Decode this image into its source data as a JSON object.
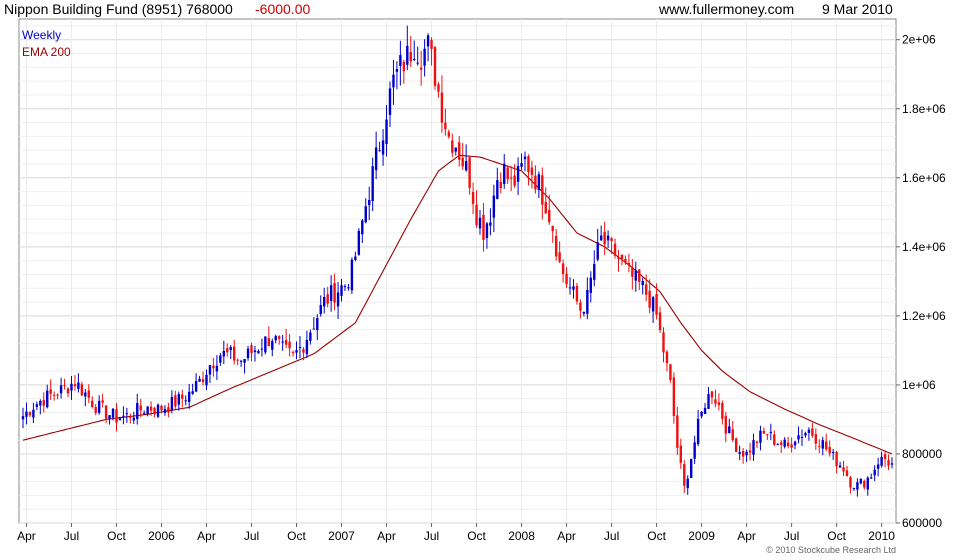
{
  "header": {
    "title": "Nippon Building Fund (8951) 768000",
    "change": "-6000.00",
    "website": "www.fullermoney.com",
    "date": "9 Mar 2010"
  },
  "copyright": "© 2010 Stockcube Research Ltd",
  "colors": {
    "up": "#0000cc",
    "down": "#ee1111",
    "ema": "#990000",
    "grid": "#d8d8d8"
  },
  "chart_data": {
    "type": "candlestick-line",
    "legend": {
      "weekly": "Weekly",
      "ema": "EMA 200",
      "position": "top-left"
    },
    "y_ticks": [
      600000,
      800000,
      1000000,
      1200000,
      1400000,
      1600000,
      1800000,
      2000000
    ],
    "y_tick_labels": [
      "600000",
      "800000",
      "1e+06",
      "1.2e+06",
      "1.4e+06",
      "1.6e+06",
      "1.8e+06",
      "2e+06"
    ],
    "ylim": [
      600000,
      2060000
    ],
    "x_labels": [
      "Apr",
      "Jul",
      "Oct",
      "2006",
      "Apr",
      "Jul",
      "Oct",
      "2007",
      "Apr",
      "Jul",
      "Oct",
      "2008",
      "Apr",
      "Jul",
      "Oct",
      "2009",
      "Apr",
      "Jul",
      "Oct",
      "2010"
    ],
    "weekly_close": [
      [
        0,
        910000
      ],
      [
        3,
        940000
      ],
      [
        6,
        960000
      ],
      [
        9,
        975000
      ],
      [
        12,
        990000
      ],
      [
        15,
        1010000
      ],
      [
        18,
        975000
      ],
      [
        21,
        940000
      ],
      [
        24,
        920000
      ],
      [
        27,
        905000
      ],
      [
        30,
        910000
      ],
      [
        33,
        925000
      ],
      [
        36,
        935000
      ],
      [
        39,
        930000
      ],
      [
        42,
        940000
      ],
      [
        45,
        955000
      ],
      [
        48,
        975000
      ],
      [
        51,
        1010000
      ],
      [
        54,
        1060000
      ],
      [
        57,
        1090000
      ],
      [
        60,
        1085000
      ],
      [
        63,
        1070000
      ],
      [
        66,
        1095000
      ],
      [
        69,
        1120000
      ],
      [
        72,
        1140000
      ],
      [
        75,
        1100000
      ],
      [
        78,
        1080000
      ],
      [
        81,
        1120000
      ],
      [
        84,
        1180000
      ],
      [
        87,
        1240000
      ],
      [
        90,
        1270000
      ],
      [
        93,
        1290000
      ],
      [
        95,
        1330000
      ],
      [
        97,
        1420000
      ],
      [
        99,
        1520000
      ],
      [
        101,
        1610000
      ],
      [
        103,
        1700000
      ],
      [
        105,
        1800000
      ],
      [
        107,
        1880000
      ],
      [
        109,
        1920000
      ],
      [
        111,
        1950000
      ],
      [
        113,
        1990000
      ],
      [
        115,
        1960000
      ],
      [
        117,
        1980000
      ],
      [
        119,
        1900000
      ],
      [
        121,
        1800000
      ],
      [
        123,
        1720000
      ],
      [
        125,
        1700000
      ],
      [
        127,
        1650000
      ],
      [
        129,
        1600000
      ],
      [
        131,
        1500000
      ],
      [
        133,
        1450000
      ],
      [
        135,
        1500000
      ],
      [
        137,
        1600000
      ],
      [
        139,
        1620000
      ],
      [
        141,
        1580000
      ],
      [
        143,
        1600000
      ],
      [
        145,
        1650000
      ],
      [
        147,
        1620000
      ],
      [
        149,
        1580000
      ],
      [
        151,
        1530000
      ],
      [
        153,
        1460000
      ],
      [
        155,
        1350000
      ],
      [
        157,
        1300000
      ],
      [
        159,
        1260000
      ],
      [
        161,
        1220000
      ],
      [
        163,
        1250000
      ],
      [
        165,
        1350000
      ],
      [
        167,
        1420000
      ],
      [
        169,
        1400000
      ],
      [
        171,
        1380000
      ],
      [
        173,
        1350000
      ],
      [
        175,
        1320000
      ],
      [
        177,
        1300000
      ],
      [
        179,
        1280000
      ],
      [
        181,
        1250000
      ],
      [
        183,
        1200000
      ],
      [
        185,
        1100000
      ],
      [
        187,
        1000000
      ],
      [
        189,
        820000
      ],
      [
        191,
        700000
      ],
      [
        193,
        790000
      ],
      [
        195,
        880000
      ],
      [
        197,
        950000
      ],
      [
        199,
        980000
      ],
      [
        201,
        940000
      ],
      [
        203,
        880000
      ],
      [
        205,
        840000
      ],
      [
        207,
        810000
      ],
      [
        209,
        800000
      ],
      [
        211,
        830000
      ],
      [
        213,
        850000
      ],
      [
        215,
        860000
      ],
      [
        217,
        840000
      ],
      [
        219,
        830000
      ],
      [
        221,
        820000
      ],
      [
        223,
        850000
      ],
      [
        225,
        860000
      ],
      [
        227,
        870000
      ],
      [
        229,
        850000
      ],
      [
        231,
        830000
      ],
      [
        233,
        800000
      ],
      [
        235,
        780000
      ],
      [
        237,
        760000
      ],
      [
        239,
        720000
      ],
      [
        241,
        710000
      ],
      [
        243,
        720000
      ],
      [
        245,
        740000
      ],
      [
        247,
        780000
      ],
      [
        249,
        785000
      ],
      [
        251,
        768000
      ]
    ],
    "ema_200": [
      [
        0,
        840000
      ],
      [
        12,
        870000
      ],
      [
        24,
        900000
      ],
      [
        36,
        915000
      ],
      [
        48,
        935000
      ],
      [
        60,
        990000
      ],
      [
        72,
        1040000
      ],
      [
        84,
        1090000
      ],
      [
        96,
        1180000
      ],
      [
        104,
        1330000
      ],
      [
        112,
        1480000
      ],
      [
        120,
        1620000
      ],
      [
        126,
        1665000
      ],
      [
        132,
        1660000
      ],
      [
        138,
        1640000
      ],
      [
        144,
        1620000
      ],
      [
        152,
        1540000
      ],
      [
        160,
        1440000
      ],
      [
        168,
        1400000
      ],
      [
        176,
        1340000
      ],
      [
        184,
        1270000
      ],
      [
        190,
        1180000
      ],
      [
        196,
        1100000
      ],
      [
        202,
        1040000
      ],
      [
        210,
        980000
      ],
      [
        220,
        930000
      ],
      [
        230,
        885000
      ],
      [
        240,
        845000
      ],
      [
        251,
        800000
      ]
    ]
  }
}
